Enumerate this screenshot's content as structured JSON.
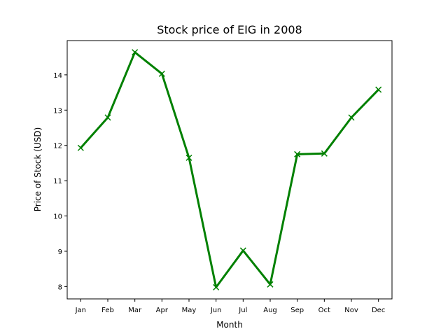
{
  "chart_data": {
    "type": "line",
    "title": "Stock price of EIG in 2008",
    "xlabel": "Month",
    "ylabel": "Price of Stock (USD)",
    "categories": [
      "Jan",
      "Feb",
      "Mar",
      "Apr",
      "May",
      "Jun",
      "Jul",
      "Aug",
      "Sep",
      "Oct",
      "Nov",
      "Dec"
    ],
    "series": [
      {
        "values": [
          11.93,
          12.79,
          14.64,
          14.03,
          11.65,
          7.98,
          9.02,
          8.06,
          11.75,
          11.77,
          12.79,
          13.58
        ],
        "color": "#008000",
        "marker": "x"
      }
    ],
    "yticks": [
      8,
      9,
      10,
      11,
      12,
      13,
      14
    ],
    "ylim": [
      7.65,
      14.97
    ],
    "grid": false,
    "legend": "none"
  }
}
